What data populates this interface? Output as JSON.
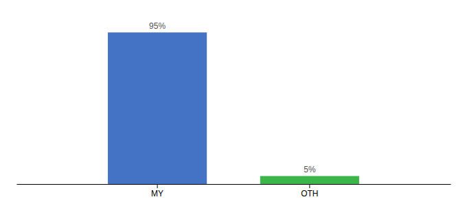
{
  "chart_data": {
    "type": "bar",
    "categories": [
      "MY",
      "OTH"
    ],
    "values": [
      95,
      5
    ],
    "value_labels": [
      "95%",
      "5%"
    ],
    "colors": [
      "#4472c4",
      "#3cb54a"
    ],
    "ylim": [
      0,
      105
    ],
    "data_labels": true,
    "tick_labels": "x"
  }
}
